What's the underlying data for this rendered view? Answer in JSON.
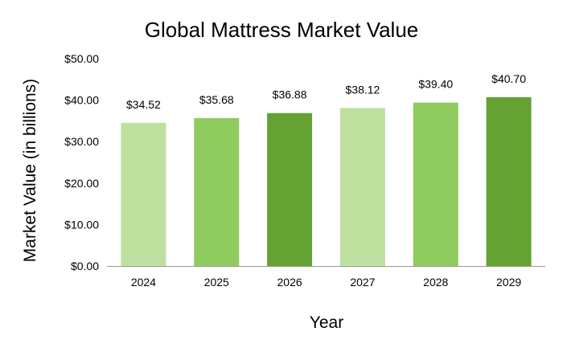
{
  "chart_data": {
    "type": "bar",
    "title": "Global Mattress Market Value",
    "xlabel": "Year",
    "ylabel": "Market Value (in billions)",
    "categories": [
      "2024",
      "2025",
      "2026",
      "2027",
      "2028",
      "2029"
    ],
    "values": [
      34.52,
      35.68,
      36.88,
      38.12,
      39.4,
      40.7
    ],
    "data_labels": [
      "$34.52",
      "$35.68",
      "$36.88",
      "$38.12",
      "$39.40",
      "$40.70"
    ],
    "bar_colors": [
      "#bfe1a0",
      "#8fcb5f",
      "#64a233",
      "#bfe1a0",
      "#8fcb5f",
      "#64a233"
    ],
    "ylim": [
      0,
      50
    ],
    "y_ticks": [
      0,
      10,
      20,
      30,
      40,
      50
    ],
    "y_tick_labels": [
      "$0.00",
      "$10.00",
      "$20.00",
      "$30.00",
      "$40.00",
      "$50.00"
    ],
    "grid": false,
    "legend": "none",
    "axis_color": "#999999"
  }
}
